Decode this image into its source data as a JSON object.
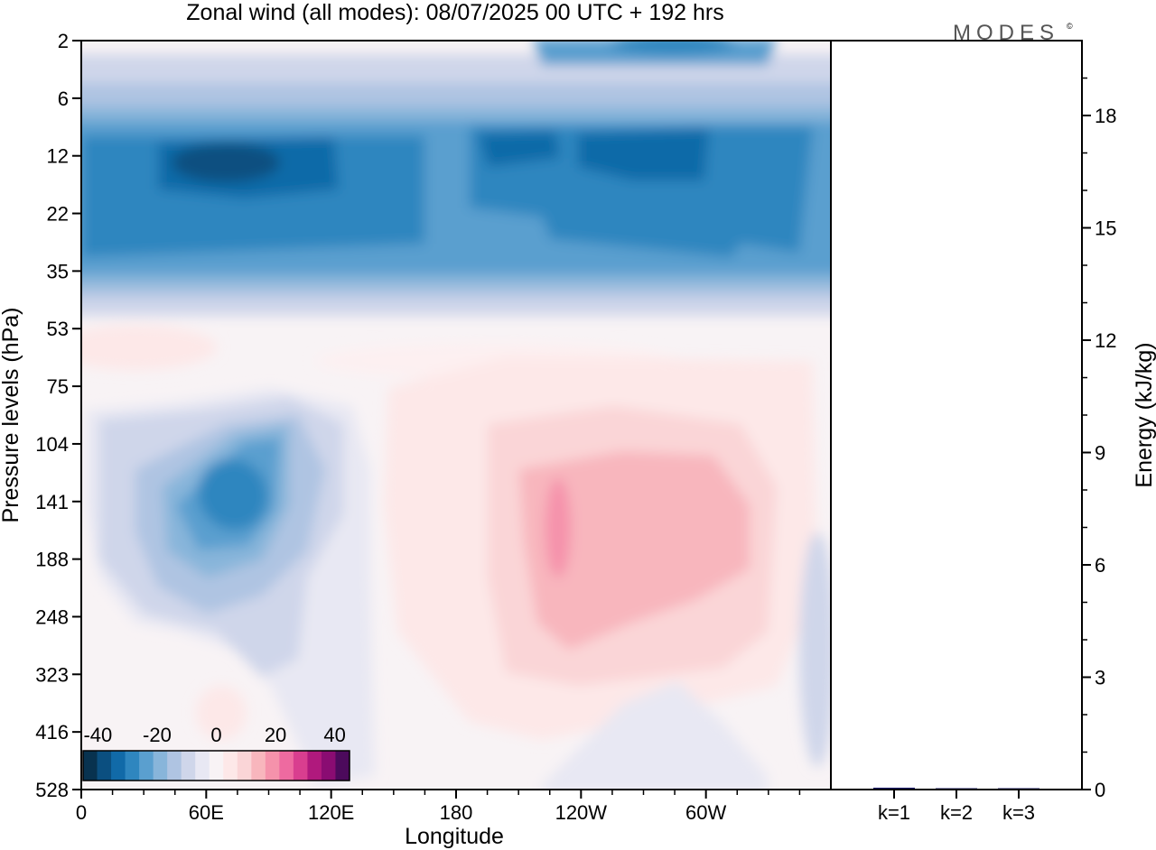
{
  "title": "Zonal wind (all modes):  08/07/2025  00 UTC  + 192 hrs",
  "brand": "MODES",
  "brand_mark": "©",
  "colors": {
    "scale": [
      "#08324f",
      "#0b4f80",
      "#116aa8",
      "#2f86bf",
      "#5a9fcf",
      "#88b5da",
      "#afc4e2",
      "#cfd6ea",
      "#e8e8f3",
      "#f8f3f5",
      "#fde8e8",
      "#fad5d7",
      "#f8b6bd",
      "#f592ab",
      "#ee6aa0",
      "#d93e8f",
      "#b0197d",
      "#8a0c72",
      "#4c0a5c"
    ],
    "background": "#ffffff",
    "axis": "#000000",
    "bar": "#1b1b6b"
  },
  "chart_data": [
    {
      "type": "heatmap",
      "title": "Zonal wind (all modes):  08/07/2025  00 UTC  + 192 hrs",
      "xlabel": "Longitude",
      "ylabel": "Pressure levels (hPa)",
      "x_ticks": [
        "0",
        "60E",
        "120E",
        "180",
        "120W",
        "60W"
      ],
      "x_tick_values": [
        0,
        60,
        120,
        180,
        240,
        300
      ],
      "xlim": [
        0,
        360
      ],
      "y_ticks": [
        "2",
        "6",
        "12",
        "22",
        "35",
        "53",
        "75",
        "104",
        "141",
        "188",
        "248",
        "323",
        "416",
        "528"
      ],
      "colorbar": {
        "labels": [
          "-40",
          "-20",
          "0",
          "20",
          "40"
        ],
        "label_values": [
          -40,
          -20,
          0,
          20,
          40
        ],
        "range": [
          -45,
          45
        ]
      },
      "features": [
        {
          "kind": "easterly jet",
          "lon": [
            35,
            205
          ],
          "level_index": [
            2.0,
            3.6
          ],
          "min_wind": -40
        },
        {
          "kind": "easterly jet",
          "lon": [
            190,
            310
          ],
          "level_index": [
            1.6,
            3.2
          ],
          "min_wind": -38
        },
        {
          "kind": "easterly band",
          "lon": [
            0,
            360
          ],
          "level_index": [
            0,
            4.6
          ],
          "min_wind": -25
        },
        {
          "kind": "upper easterly",
          "lon": [
            250,
            330
          ],
          "level_index": [
            0,
            0.6
          ],
          "min_wind": -30
        },
        {
          "kind": "upper troposphere easterlies",
          "lon": [
            20,
            140
          ],
          "level_index": [
            6.5,
            11.5
          ],
          "min_wind": -34
        },
        {
          "kind": "upper troposphere westerlies",
          "lon": [
            145,
            330
          ],
          "level_index": [
            6.0,
            12.0
          ],
          "max_wind": 24
        }
      ]
    },
    {
      "type": "bar",
      "categories": [
        "k=1",
        "k=2",
        "k=3"
      ],
      "values": [
        0.05,
        0.03,
        0.03
      ],
      "ylabel": "Energy (kJ/kg)",
      "y_ticks": [
        "0",
        "3",
        "6",
        "9",
        "12",
        "15",
        "18"
      ],
      "ylim": [
        0,
        20
      ]
    }
  ]
}
